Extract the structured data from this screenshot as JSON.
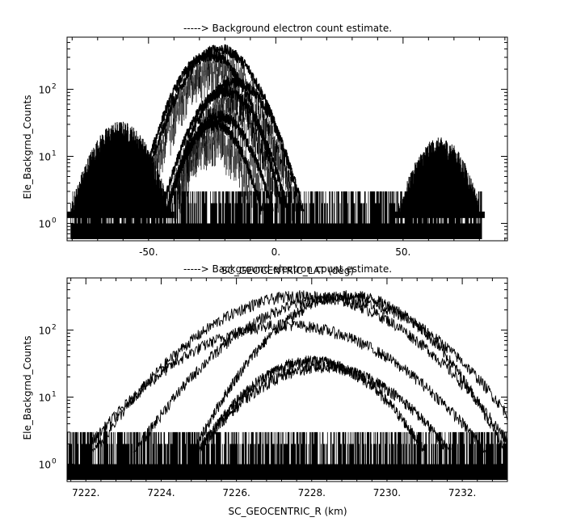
{
  "chart_data": [
    {
      "type": "scatter",
      "title": "-----> Background electron count estimate.",
      "xlabel": "SC_GEOCENTRIC_LAT (deg)",
      "ylabel": "Ele_Backgrnd_Counts",
      "xlim": [
        -82,
        91
      ],
      "ylim": [
        0.55,
        600
      ],
      "yscale": "log",
      "x_ticks": [
        {
          "value": -50,
          "label": "-50."
        },
        {
          "value": 0,
          "label": "0."
        },
        {
          "value": 50,
          "label": "50."
        }
      ],
      "y_ticks": [
        {
          "value": 1,
          "label": "10",
          "exp": "0"
        },
        {
          "value": 10,
          "label": "10",
          "exp": "1"
        },
        {
          "value": 100,
          "label": "10",
          "exp": "2"
        }
      ],
      "series": [
        {
          "peak_x": -22,
          "peak_y": 400,
          "half_width": 33
        },
        {
          "peak_x": -26,
          "peak_y": 330,
          "half_width": 30
        },
        {
          "peak_x": -16,
          "peak_y": 130,
          "half_width": 28
        },
        {
          "peak_x": -20,
          "peak_y": 95,
          "half_width": 26
        },
        {
          "peak_x": -22,
          "peak_y": 40,
          "half_width": 22
        },
        {
          "peak_x": -24,
          "peak_y": 30,
          "half_width": 20
        }
      ],
      "background_bands": [
        {
          "x_start": -82,
          "x_end": -40,
          "level": 28
        },
        {
          "x_start": 47,
          "x_end": 82,
          "level": 16
        }
      ],
      "grid": false
    },
    {
      "type": "scatter",
      "title": "-----> Background electron count estimate.",
      "xlabel": "SC_GEOCENTRIC_R (km)",
      "ylabel": "Ele_Backgrnd_Counts",
      "xlim": [
        7221.5,
        7233.2
      ],
      "ylim": [
        0.55,
        600
      ],
      "yscale": "log",
      "x_ticks": [
        {
          "value": 7222,
          "label": "7222."
        },
        {
          "value": 7224,
          "label": "7224."
        },
        {
          "value": 7226,
          "label": "7226."
        },
        {
          "value": 7228,
          "label": "7228."
        },
        {
          "value": 7230,
          "label": "7230."
        },
        {
          "value": 7232,
          "label": "7232."
        }
      ],
      "y_ticks": [
        {
          "value": 1,
          "label": "10",
          "exp": "0"
        },
        {
          "value": 10,
          "label": "10",
          "exp": "1"
        },
        {
          "value": 100,
          "label": "10",
          "exp": "2"
        }
      ],
      "series": [
        {
          "peak_x": 7227.8,
          "peak_y": 330,
          "half_width": 5.8
        },
        {
          "peak_x": 7228.6,
          "peak_y": 300,
          "half_width": 5.5
        },
        {
          "peak_x": 7229.0,
          "peak_y": 330,
          "half_width": 4.3
        },
        {
          "peak_x": 7227.3,
          "peak_y": 120,
          "half_width": 5.6
        },
        {
          "peak_x": 7228.0,
          "peak_y": 35,
          "half_width": 3.2
        },
        {
          "peak_x": 7228.3,
          "peak_y": 28,
          "half_width": 3.6
        }
      ],
      "grid": false
    }
  ]
}
